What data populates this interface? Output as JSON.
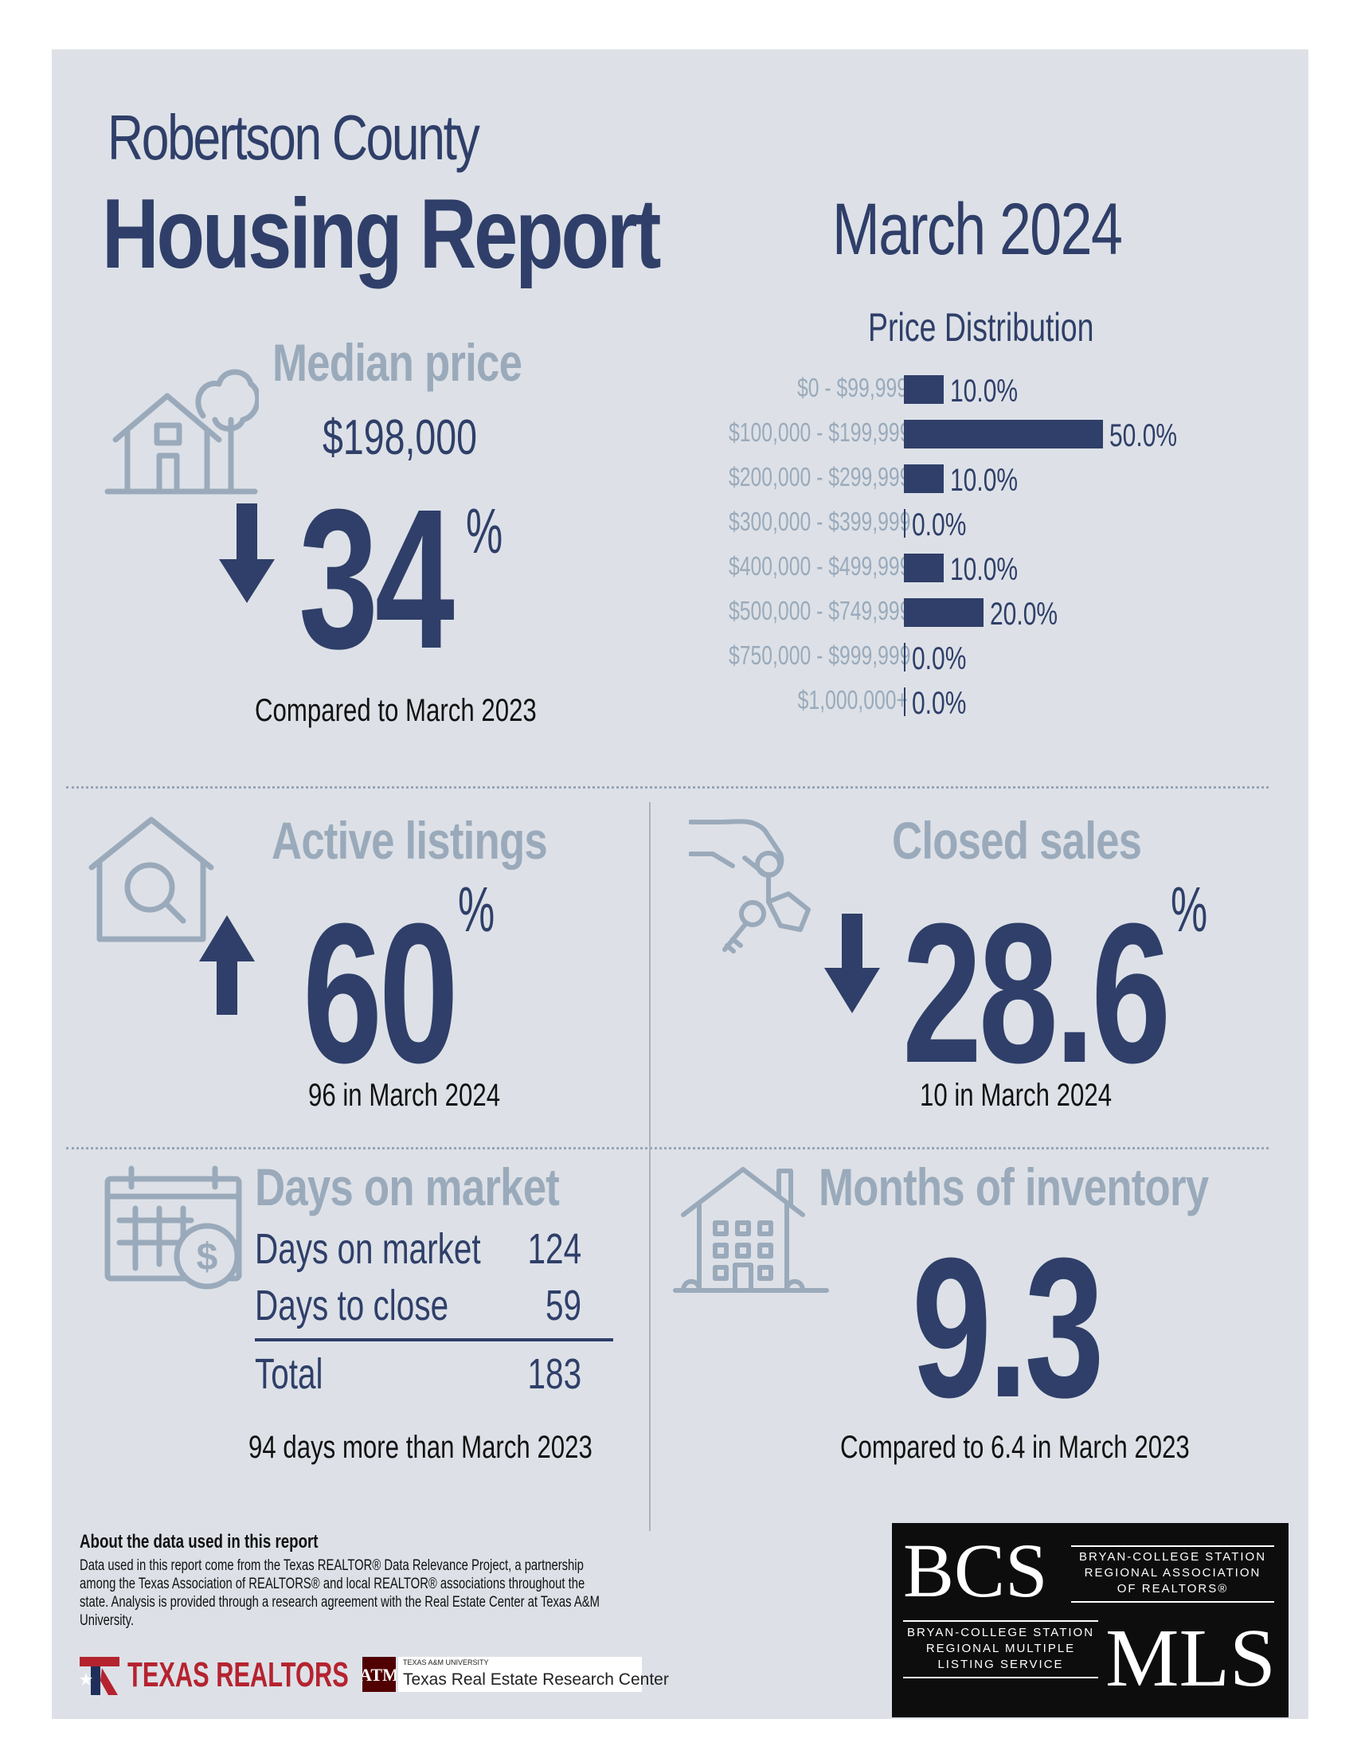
{
  "header": {
    "county": "Robertson County",
    "report_title": "Housing Report",
    "month": "March 2024"
  },
  "median_price": {
    "heading": "Median price",
    "value": "$198,000",
    "change_pct": "34",
    "change_symbol": "%",
    "direction": "down",
    "comparison": "Compared to March 2023",
    "icon": "house-tree-icon"
  },
  "price_distribution": {
    "title": "Price Distribution",
    "bar_color": "#2f3f69"
  },
  "chart_data": {
    "type": "bar",
    "orientation": "horizontal",
    "title": "Price Distribution",
    "categories": [
      "$0 - $99,999",
      "$100,000 - $199,999",
      "$200,000 - $299,999",
      "$300,000 - $399,999",
      "$400,000 - $499,999",
      "$500,000 - $749,999",
      "$750,000 - $999,999",
      "$1,000,000+"
    ],
    "values": [
      10.0,
      50.0,
      10.0,
      0.0,
      10.0,
      20.0,
      0.0,
      0.0
    ],
    "value_labels": [
      "10.0%",
      "50.0%",
      "10.0%",
      "0.0%",
      "10.0%",
      "20.0%",
      "0.0%",
      "0.0%"
    ],
    "xlim": [
      0,
      50
    ]
  },
  "active_listings": {
    "heading": "Active listings",
    "change_pct": "60",
    "change_symbol": "%",
    "direction": "up",
    "detail": "96 in March 2024",
    "icon": "house-magnifier-icon"
  },
  "closed_sales": {
    "heading": "Closed sales",
    "change_pct": "28.6",
    "change_symbol": "%",
    "direction": "down",
    "detail": "10 in March 2024",
    "icon": "hand-keys-icon"
  },
  "days_on_market": {
    "heading": "Days on market",
    "rows": [
      {
        "label": "Days on market",
        "value": "124"
      },
      {
        "label": "Days to close",
        "value": "59"
      }
    ],
    "total_label": "Total",
    "total_value": "183",
    "comparison": "94 days more than March 2023",
    "icon": "calendar-dollar-icon"
  },
  "months_inventory": {
    "heading": "Months of inventory",
    "value": "9.3",
    "comparison": "Compared to 6.4 in March 2023",
    "icon": "apartment-building-icon"
  },
  "about": {
    "title": "About the data used in this report",
    "body": "Data used in this report come from the Texas REALTOR® Data Relevance Project, a partnership among the Texas Association of REALTORS® and local REALTOR® associations throughout the state. Analysis is provided through a research agreement with the Real Estate Center at Texas A&M University."
  },
  "footer_logos": {
    "texas_realtors": "TEXAS REALTORS",
    "tamu_small": "TEXAS A&M UNIVERSITY",
    "tamu_center": "Texas Real Estate Research Center",
    "bcs": "BCS",
    "bcs_assoc": [
      "BRYAN-COLLEGE STATION",
      "REGIONAL ASSOCIATION",
      "OF REALTORS®"
    ],
    "mls": "MLS",
    "mls_assoc": [
      "BRYAN-COLLEGE STATION",
      "REGIONAL MULTIPLE",
      "LISTING SERVICE"
    ]
  }
}
